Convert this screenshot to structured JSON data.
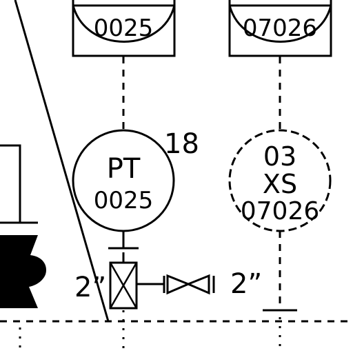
{
  "instruments": [
    {
      "top_box_label": "0025",
      "function": "PT",
      "number": "0025",
      "tag_note": "18"
    },
    {
      "top_box_label": "07026",
      "prefix": "03",
      "function": "XS",
      "number": "07026"
    }
  ],
  "line_sizes": {
    "left": "2”",
    "right": "2”"
  },
  "colors": {
    "line": "#000000",
    "background": "#ffffff"
  }
}
